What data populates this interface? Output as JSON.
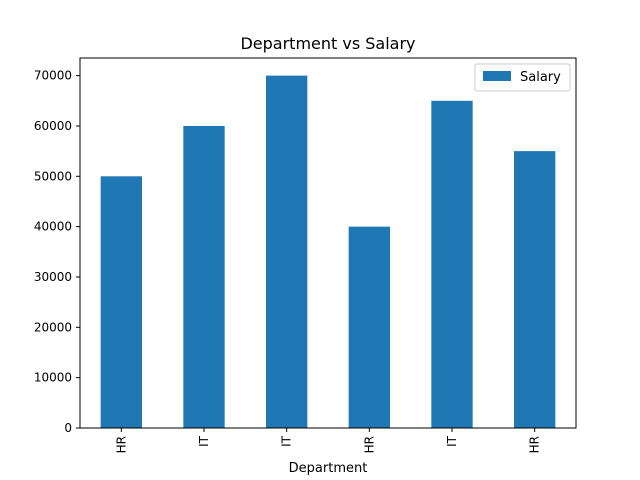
{
  "chart_data": {
    "type": "bar",
    "title": "Department vs Salary",
    "xlabel": "Department",
    "ylabel": "",
    "categories": [
      "HR",
      "IT",
      "IT",
      "HR",
      "IT",
      "HR"
    ],
    "series": [
      {
        "name": "Salary",
        "values": [
          50000,
          60000,
          70000,
          40000,
          65000,
          55000
        ],
        "color": "#1f77b4"
      }
    ],
    "ylim": [
      0,
      73500
    ],
    "yticks": [
      0,
      10000,
      20000,
      30000,
      40000,
      50000,
      60000,
      70000
    ],
    "ytick_labels": [
      "0",
      "10000",
      "20000",
      "30000",
      "40000",
      "50000",
      "60000",
      "70000"
    ],
    "grid": false,
    "legend_position": "top-right",
    "xtick_rotation": "vertical"
  }
}
